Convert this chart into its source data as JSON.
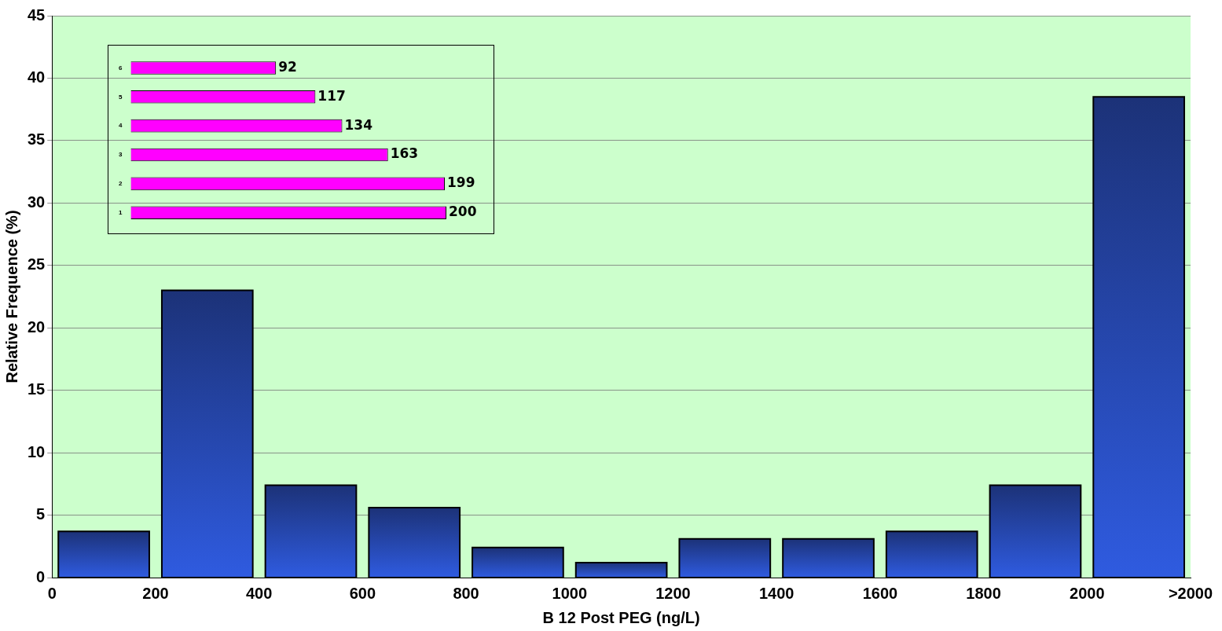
{
  "chart_data": [
    {
      "type": "histogram",
      "xlabel": "B 12 Post PEG (ng/L)",
      "ylabel": "Relative Frequence (%)",
      "bins": [
        0,
        200,
        400,
        600,
        800,
        1000,
        1200,
        1400,
        1600,
        1800,
        2000,
        2200
      ],
      "values": [
        3.7,
        23,
        7.4,
        5.6,
        2.4,
        1.2,
        3.1,
        3.1,
        3.7,
        7.4,
        38.5
      ],
      "color": "#2f5be0",
      "xlim": [
        0,
        2200
      ],
      "xticks": [
        0,
        200,
        400,
        600,
        800,
        1000,
        1200,
        1400,
        1600,
        1800,
        2000,
        {
          "value": 2200,
          "label": ">2000"
        }
      ],
      "ylim": [
        0,
        45
      ],
      "yticks": [
        0,
        5,
        10,
        15,
        20,
        25,
        30,
        35,
        40,
        45
      ],
      "grid": "y",
      "legend": false
    },
    {
      "type": "bar",
      "orientation": "horizontal",
      "categories": [
        "6",
        "5",
        "4",
        "3",
        "2",
        "1"
      ],
      "values": [
        92,
        117,
        134,
        163,
        199,
        200
      ],
      "color": "#ff00ff",
      "data_labels": true,
      "legend": false
    }
  ]
}
